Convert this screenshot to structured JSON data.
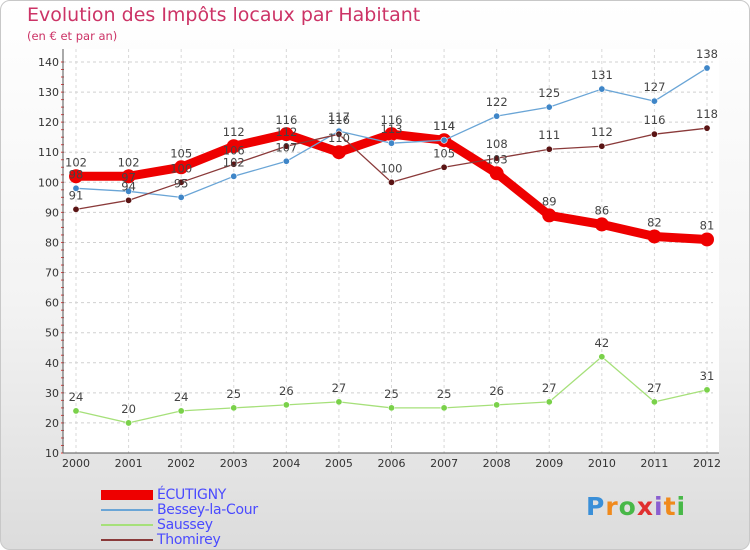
{
  "chart_data": {
    "type": "line",
    "title": "Evolution des Impôts locaux par Habitant",
    "subtitle": "(en € et par an)",
    "xlabel": "",
    "ylabel": "",
    "x": [
      "2000",
      "2001",
      "2002",
      "2003",
      "2004",
      "2005",
      "2006",
      "2007",
      "2008",
      "2009",
      "2010",
      "2011",
      "2012"
    ],
    "ylim": [
      10,
      140
    ],
    "yticks": [
      "140",
      "130",
      "120",
      "110",
      "100",
      "90",
      "80",
      "70",
      "60",
      "50",
      "40",
      "30",
      "20",
      "10"
    ],
    "legend_position": "bottom-left",
    "series": [
      {
        "name": "ÉCUTIGNY",
        "color": "#ee0000",
        "style": "thick",
        "values": [
          102,
          102,
          105,
          112,
          116,
          110,
          116,
          114,
          103,
          89,
          86,
          82,
          81
        ]
      },
      {
        "name": "Bessey-la-Cour",
        "color": "#6aa5d6",
        "marker": "#3f86c8",
        "style": "thin",
        "values": [
          98,
          97,
          95,
          102,
          107,
          117,
          113,
          114,
          122,
          125,
          131,
          127,
          138
        ]
      },
      {
        "name": "Saussey",
        "color": "#a6e07a",
        "marker": "#7ad14a",
        "style": "thin",
        "values": [
          24,
          20,
          24,
          25,
          26,
          27,
          25,
          25,
          26,
          27,
          42,
          27,
          31
        ]
      },
      {
        "name": "Thomirey",
        "color": "#8a3a3a",
        "marker": "#5a1414",
        "style": "thin",
        "values": [
          91,
          94,
          100,
          106,
          112,
          116,
          100,
          105,
          108,
          111,
          112,
          116,
          118
        ]
      }
    ]
  },
  "logo": {
    "letters": [
      "P",
      "r",
      "o",
      "x",
      "i",
      "t",
      "i"
    ],
    "colors": [
      "#3a8fd8",
      "#f08a1c",
      "#48b848",
      "#e03030",
      "#8a5fd0",
      "#f08a1c",
      "#48b848"
    ]
  }
}
